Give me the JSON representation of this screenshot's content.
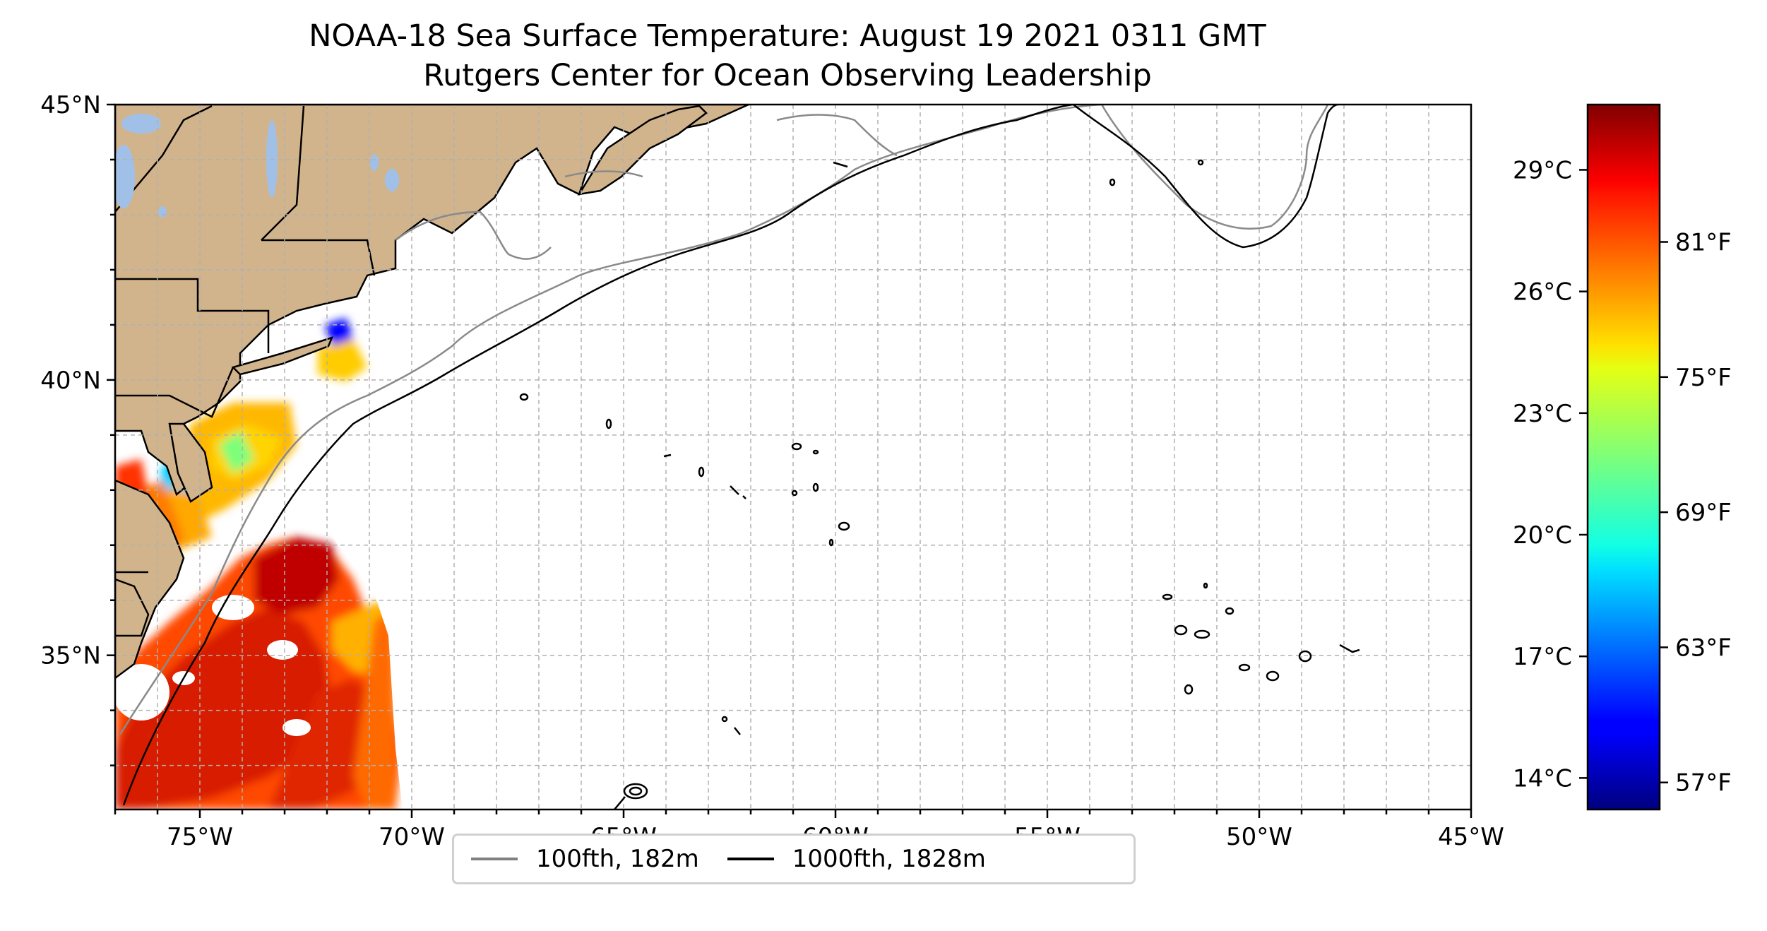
{
  "title": "NOAA-18 Sea Surface Temperature: August 19 2021 0311 GMT",
  "subtitle": "Rutgers Center for Ocean Observing Leadership",
  "map": {
    "lon_range": [
      -77,
      -45
    ],
    "lat_range": [
      32.2,
      45
    ],
    "lon_tick_labels": [
      "75°W",
      "70°W",
      "65°W",
      "60°W",
      "55°W",
      "50°W",
      "45°W"
    ],
    "lon_tick_values": [
      -75,
      -70,
      -65,
      -60,
      -55,
      -50,
      -45
    ],
    "lat_tick_labels": [
      "35°N",
      "40°N",
      "45°N"
    ],
    "lat_tick_values": [
      35,
      40,
      45
    ],
    "gridlines": true,
    "land_color": "#d2b48c",
    "lake_color": "#a0c0e8"
  },
  "colorbar": {
    "colormap": "jet",
    "celsius_labels": [
      "29°C",
      "26°C",
      "23°C",
      "20°C",
      "17°C",
      "14°C"
    ],
    "celsius_values": [
      29,
      26,
      23,
      20,
      17,
      14
    ],
    "fahrenheit_labels": [
      "81°F",
      "75°F",
      "69°F",
      "63°F",
      "57°F"
    ],
    "fahrenheit_values": [
      81,
      75,
      69,
      63,
      57
    ],
    "range_f": [
      55.8,
      87.1
    ]
  },
  "legend": {
    "items": [
      {
        "label": "100fth, 182m",
        "color": "#808080"
      },
      {
        "label": "1000fth, 1828m",
        "color": "#000000"
      }
    ]
  }
}
